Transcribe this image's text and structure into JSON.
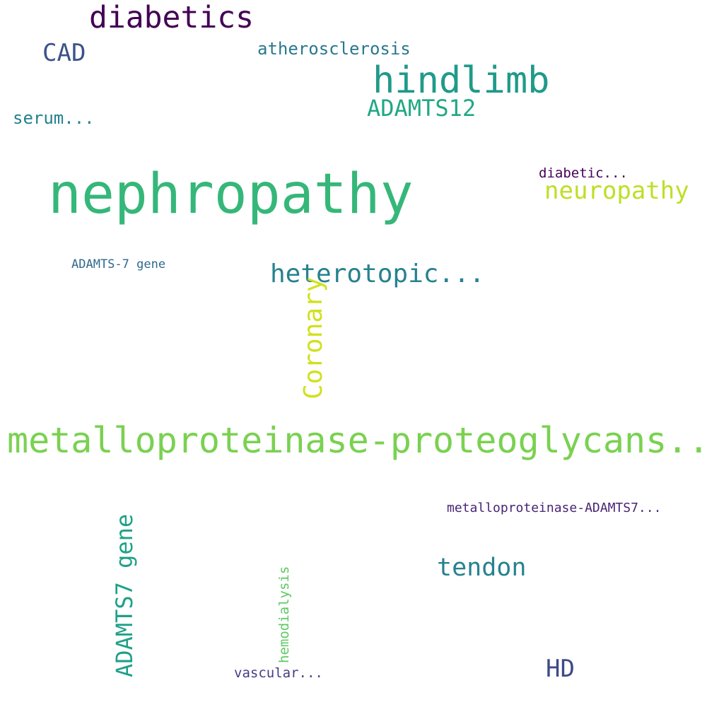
{
  "words": [
    {
      "id": "nephropathy",
      "text": "nephropathy",
      "color": "#35b779",
      "orientation": "horizontal"
    },
    {
      "id": "metallo",
      "text": "metalloproteinase-proteoglycans...",
      "color": "#7ad151",
      "orientation": "horizontal"
    },
    {
      "id": "hindlimb",
      "text": "hindlimb",
      "color": "#1f9a8a",
      "orientation": "horizontal"
    },
    {
      "id": "diabetics",
      "text": "diabetics",
      "color": "#440154",
      "orientation": "horizontal"
    },
    {
      "id": "heterotopic",
      "text": "heterotopic...",
      "color": "#26828e",
      "orientation": "horizontal"
    },
    {
      "id": "adamts12",
      "text": "ADAMTS12",
      "color": "#22a884",
      "orientation": "horizontal"
    },
    {
      "id": "neuropathy",
      "text": "neuropathy",
      "color": "#bddf26",
      "orientation": "horizontal"
    },
    {
      "id": "cad",
      "text": "CAD",
      "color": "#3b528b",
      "orientation": "horizontal"
    },
    {
      "id": "tendon",
      "text": "tendon",
      "color": "#26828e",
      "orientation": "horizontal"
    },
    {
      "id": "hd",
      "text": "HD",
      "color": "#3e4a89",
      "orientation": "horizontal"
    },
    {
      "id": "athero",
      "text": "atherosclerosis",
      "color": "#2a788e",
      "orientation": "horizontal"
    },
    {
      "id": "serum",
      "text": "serum...",
      "color": "#23818d",
      "orientation": "horizontal"
    },
    {
      "id": "diabetic2",
      "text": "diabetic...",
      "color": "#440154",
      "orientation": "horizontal"
    },
    {
      "id": "adamts7gene",
      "text": "ADAMTS-7 gene",
      "color": "#31688e",
      "orientation": "horizontal"
    },
    {
      "id": "metallo2",
      "text": "metalloproteinase-ADAMTS7...",
      "color": "#482475",
      "orientation": "horizontal"
    },
    {
      "id": "vascular",
      "text": "vascular...",
      "color": "#433e85",
      "orientation": "horizontal"
    },
    {
      "id": "coronary",
      "text": "Coronary",
      "color": "#d0e11c",
      "orientation": "vertical"
    },
    {
      "id": "adamts7",
      "text": "ADAMTS7 gene",
      "color": "#1fa088",
      "orientation": "vertical"
    },
    {
      "id": "hemo",
      "text": "hemodialysis",
      "color": "#5ec962",
      "orientation": "vertical"
    }
  ]
}
